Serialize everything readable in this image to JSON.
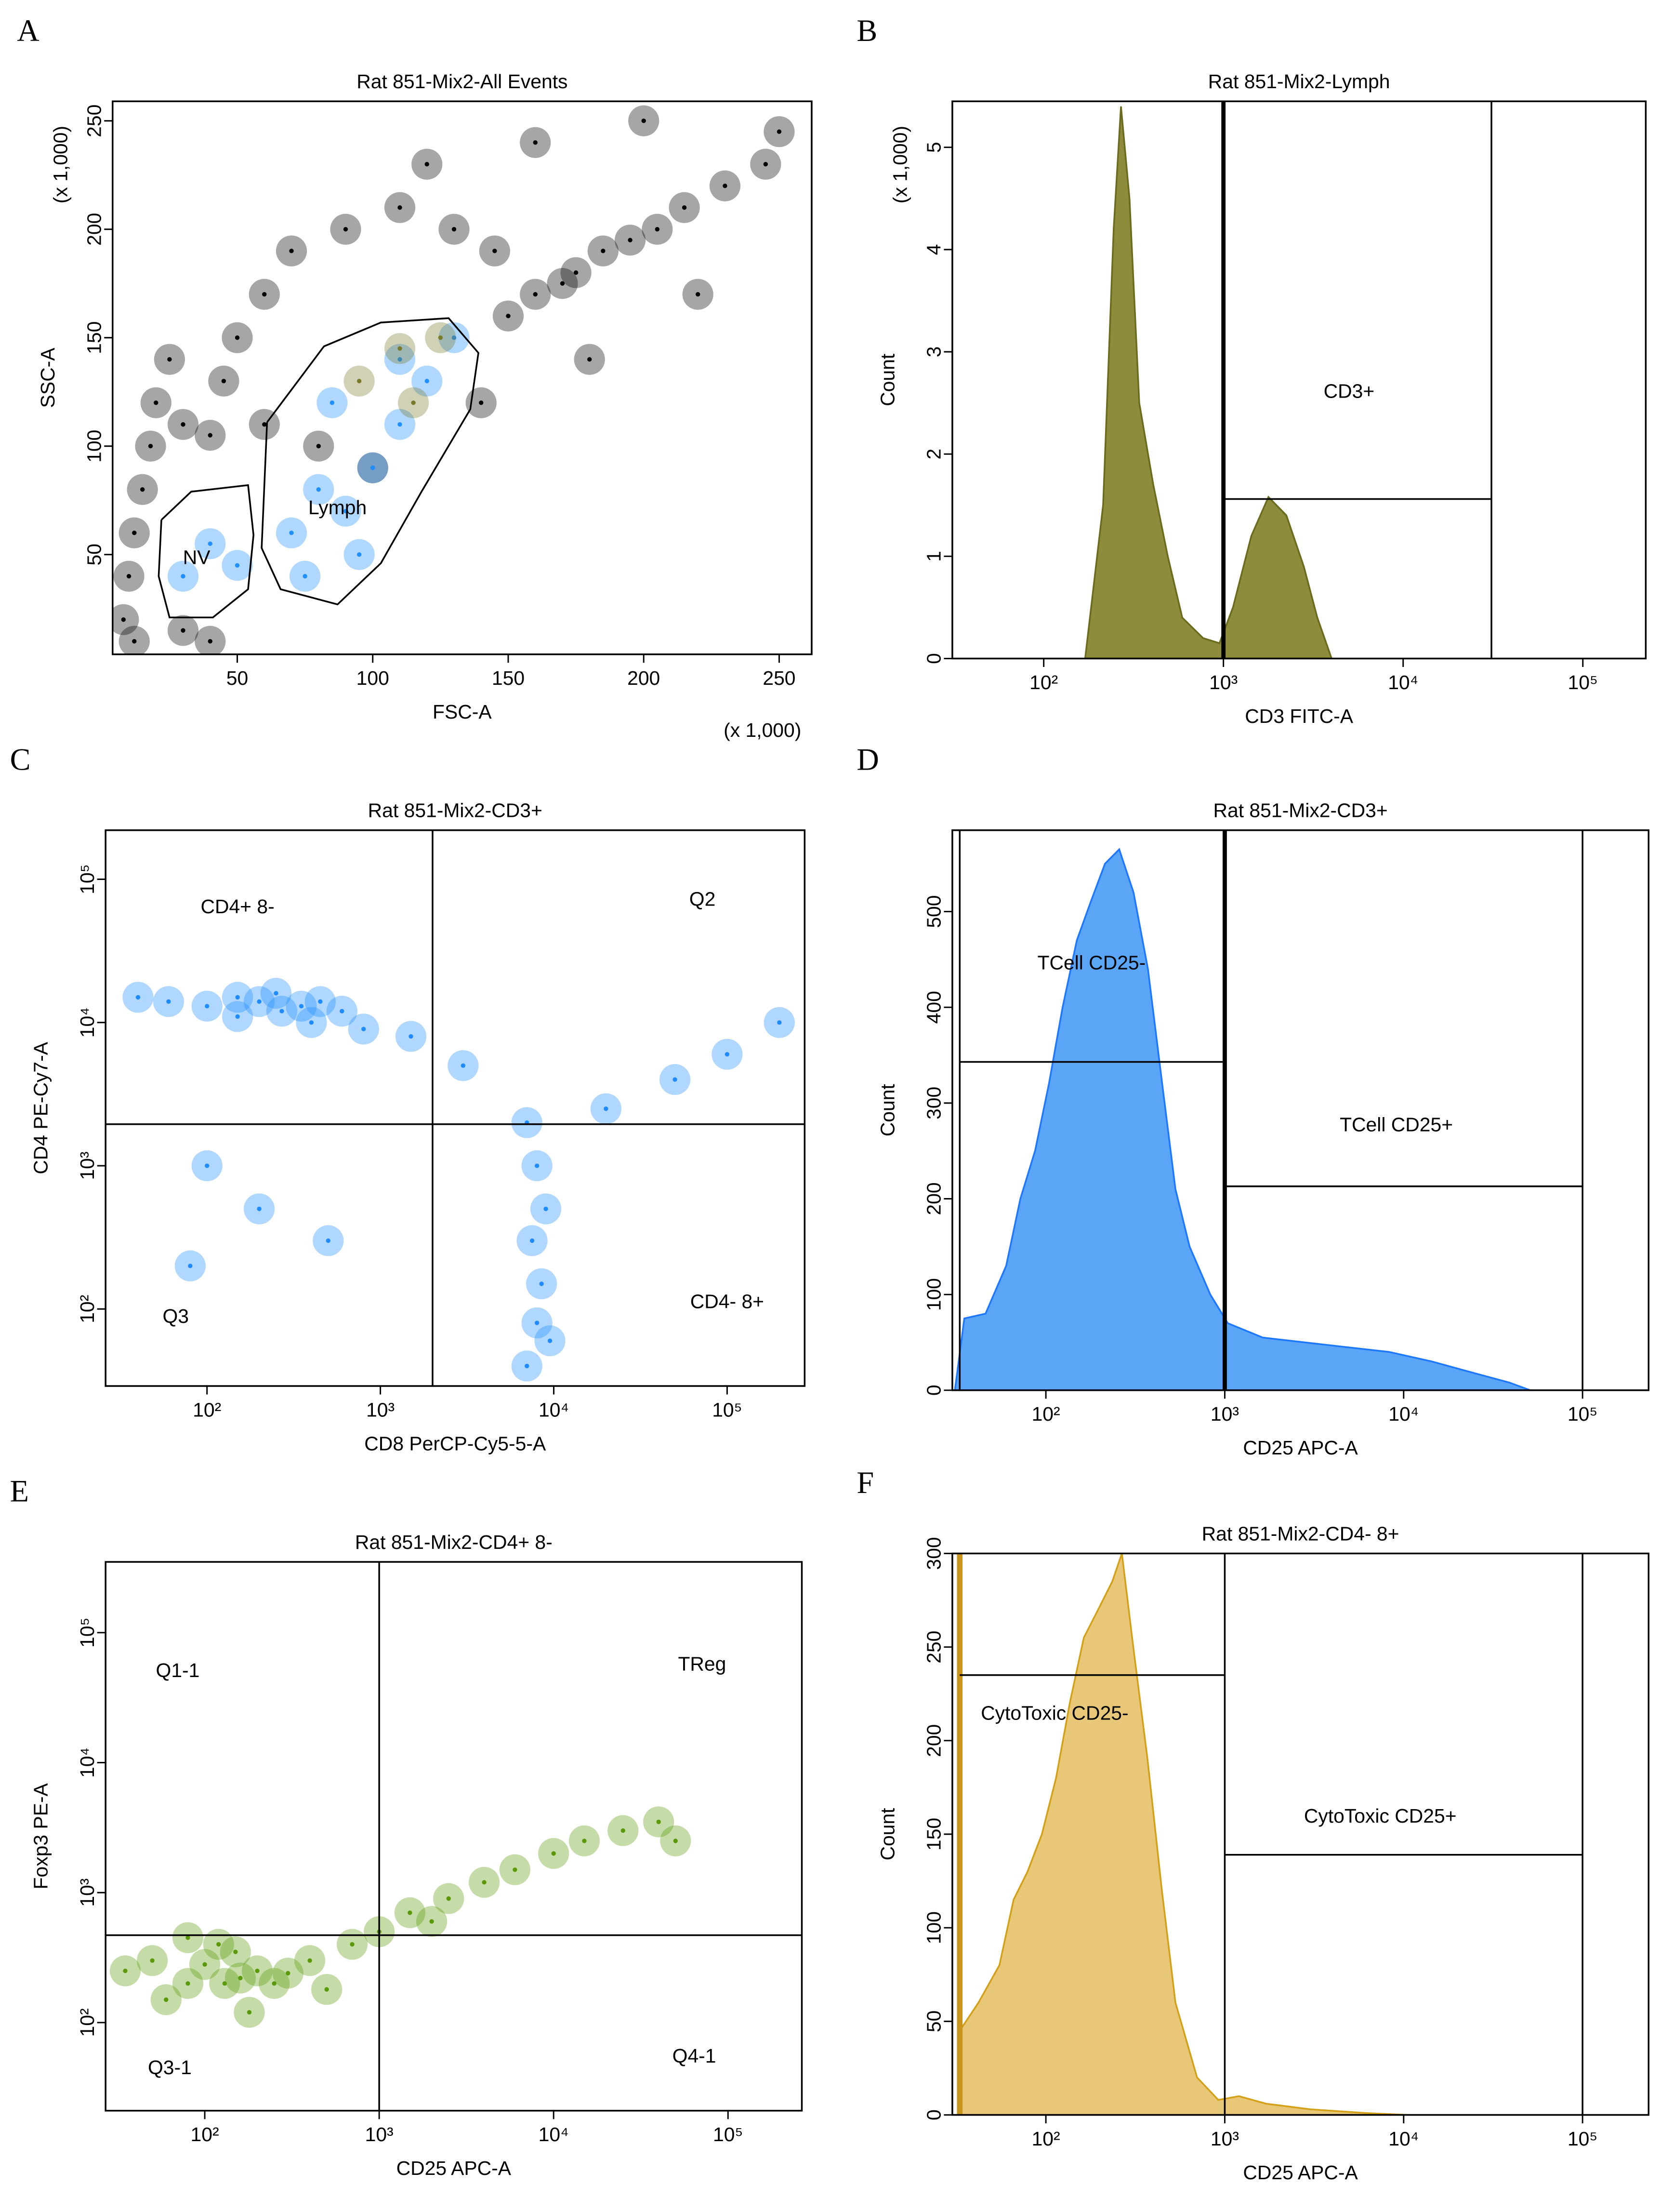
{
  "chart_data": [
    {
      "panel": "A",
      "type": "scatter",
      "title": "Rat 851-Mix2-All Events",
      "xlabel": "FSC-A",
      "ylabel": "SSC-A",
      "xlabel_unit": "(x 1,000)",
      "ylabel_unit": "(x 1,000)",
      "xlim": [
        4,
        262
      ],
      "ylim": [
        4,
        259
      ],
      "xticks": [
        50,
        100,
        150,
        200,
        250
      ],
      "yticks": [
        50,
        100,
        150,
        200,
        250
      ],
      "series": [
        {
          "color": "#000000",
          "x": [
            8,
            10,
            12,
            15,
            18,
            12,
            20,
            25,
            30,
            40,
            45,
            50,
            60,
            70,
            90,
            110,
            130,
            145,
            150,
            160,
            170,
            175,
            185,
            195,
            205,
            215,
            230,
            245,
            200,
            160,
            120,
            100,
            80,
            60,
            40,
            180,
            220,
            250,
            30,
            140
          ],
          "values": [
            20,
            40,
            60,
            80,
            100,
            10,
            120,
            140,
            15,
            105,
            130,
            150,
            170,
            190,
            200,
            210,
            200,
            190,
            160,
            170,
            175,
            180,
            190,
            195,
            200,
            210,
            220,
            230,
            250,
            240,
            230,
            90,
            100,
            110,
            10,
            140,
            170,
            245,
            110,
            120
          ]
        },
        {
          "color": "#1e90ff",
          "x": [
            30,
            40,
            50,
            70,
            80,
            90,
            100,
            110,
            120,
            75,
            95,
            110,
            130,
            85
          ],
          "values": [
            40,
            55,
            45,
            60,
            80,
            70,
            90,
            110,
            130,
            40,
            50,
            140,
            150,
            120
          ]
        },
        {
          "color": "#7a7a2a",
          "x": [
            95,
            110,
            125,
            115
          ],
          "values": [
            130,
            145,
            150,
            120
          ]
        }
      ],
      "gates": [
        {
          "x": [
            61,
            82,
            103,
            128,
            139,
            136,
            118,
            103,
            87,
            66,
            59,
            61
          ],
          "y": [
            111,
            146,
            157,
            159,
            143,
            117,
            79,
            46,
            27,
            34,
            53,
            111
          ]
        },
        {
          "x": [
            22,
            33,
            54,
            56,
            54,
            41,
            25,
            21,
            22
          ],
          "y": [
            66,
            79,
            82,
            59,
            34,
            21,
            21,
            40,
            66
          ]
        }
      ],
      "gate_labels": [
        {
          "text": "Lymph",
          "x": 87,
          "y": 71
        },
        {
          "text": "NV",
          "x": 35,
          "y": 48
        }
      ]
    },
    {
      "panel": "B",
      "type": "area",
      "title": "Rat 851-Mix2-Lymph",
      "xlabel": "CD3 FITC-A",
      "ylabel": "Count",
      "ylabel_unit": "(x 1,000)",
      "xscale": "log",
      "xlim": [
        31,
        224000
      ],
      "ylim": [
        0,
        5.45
      ],
      "xticks": [
        {
          "value": 100,
          "label": "10²"
        },
        {
          "value": 1000,
          "label": "10³"
        },
        {
          "value": 10000,
          "label": "10⁴"
        },
        {
          "value": 100000,
          "label": "10⁵"
        }
      ],
      "yticks": [
        0,
        1,
        2,
        3,
        4,
        5
      ],
      "color": "#6b6b1e",
      "fill": "#8c8c3c",
      "x": [
        170,
        214,
        245,
        269,
        300,
        340,
        407,
        490,
        590,
        770,
        950,
        1130,
        1430,
        1780,
        2240,
        2800,
        3330,
        4000
      ],
      "values": [
        0,
        1.5,
        4.2,
        5.4,
        4.5,
        2.5,
        1.7,
        1.0,
        0.4,
        0.2,
        0.15,
        0.5,
        1.2,
        1.58,
        1.4,
        0.9,
        0.4,
        0
      ],
      "gates": [
        {
          "x": [
            1000,
            1000
          ],
          "y": [
            0,
            5.45
          ],
          "width": 3
        },
        {
          "x": [
            31000,
            31000
          ],
          "y": [
            0,
            5.45
          ]
        },
        {
          "x": [
            1000,
            31000
          ],
          "y": [
            1.56,
            1.56
          ]
        }
      ],
      "gate_labels": [
        {
          "text": "CD3+",
          "x": 5000,
          "y": 2.6
        }
      ]
    },
    {
      "panel": "C",
      "type": "scatter",
      "title": "Rat 851-Mix2-CD3+",
      "xlabel": "CD8 PerCP-Cy5-5-A",
      "ylabel": "CD4 PE-Cy7-A",
      "xscale": "log",
      "yscale": "log",
      "xlim": [
        26,
        280000
      ],
      "ylim": [
        29,
        220000
      ],
      "xticks": [
        {
          "value": 100,
          "label": "10²"
        },
        {
          "value": 1000,
          "label": "10³"
        },
        {
          "value": 10000,
          "label": "10⁴"
        },
        {
          "value": 100000,
          "label": "10⁵"
        }
      ],
      "yticks": [
        {
          "value": 100,
          "label": "10²"
        },
        {
          "value": 1000,
          "label": "10³"
        },
        {
          "value": 10000,
          "label": "10⁴"
        },
        {
          "value": 100000,
          "label": "10⁵"
        }
      ],
      "series": [
        {
          "color": "#1e8cff",
          "x": [
            40,
            60,
            100,
            150,
            200,
            270,
            350,
            450,
            600,
            800,
            150,
            250,
            400,
            7000,
            8000,
            9000,
            7500,
            8500,
            8000,
            7000,
            9500,
            20000,
            50000,
            100000,
            200000,
            3000,
            1500,
            80,
            200,
            500,
            100
          ],
          "values": [
            15000,
            14000,
            13000,
            15000,
            14000,
            12000,
            13000,
            14000,
            12000,
            9000,
            11000,
            16000,
            10000,
            2000,
            1000,
            500,
            300,
            150,
            80,
            40,
            60,
            2500,
            4000,
            6000,
            10000,
            5000,
            8000,
            200,
            500,
            300,
            1000
          ]
        }
      ],
      "gates": [
        {
          "x": [
            2000,
            2000
          ],
          "y": [
            29,
            220000
          ]
        },
        {
          "x": [
            26,
            280000
          ],
          "y": [
            1950,
            1950
          ]
        }
      ],
      "gate_labels": [
        {
          "text": "CD4+ 8-",
          "x": 150,
          "y": 63000
        },
        {
          "text": "Q2",
          "x": 72000,
          "y": 71000
        },
        {
          "text": "Q3",
          "x": 66,
          "y": 87
        },
        {
          "text": "CD4- 8+",
          "x": 100000,
          "y": 110
        }
      ]
    },
    {
      "panel": "D",
      "type": "area",
      "title": "Rat 851-Mix2-CD3+",
      "xlabel": "CD25 APC-A",
      "ylabel": "Count",
      "xscale": "log",
      "xlim": [
        30,
        234000
      ],
      "ylim": [
        0,
        585
      ],
      "xticks": [
        {
          "value": 100,
          "label": "10²"
        },
        {
          "value": 1000,
          "label": "10³"
        },
        {
          "value": 10000,
          "label": "10⁴"
        },
        {
          "value": 100000,
          "label": "10⁵"
        }
      ],
      "yticks": [
        0,
        100,
        200,
        300,
        400,
        500
      ],
      "color": "#1e78ff",
      "fill": "#5aa5f5",
      "x": [
        31,
        35,
        46,
        60,
        72,
        87,
        104,
        124,
        149,
        178,
        214,
        257,
        309,
        372,
        447,
        530,
        636,
        830,
        1040,
        1630,
        2800,
        4800,
        8300,
        14400,
        24700,
        39000,
        51000
      ],
      "values": [
        0,
        75,
        80,
        130,
        200,
        250,
        320,
        400,
        470,
        510,
        550,
        565,
        520,
        440,
        320,
        210,
        150,
        100,
        70,
        55,
        50,
        45,
        40,
        30,
        18,
        8,
        0
      ],
      "gates": [
        {
          "x": [
            33,
            33
          ],
          "y": [
            0,
            585
          ]
        },
        {
          "x": [
            1000,
            1000
          ],
          "y": [
            0,
            585
          ],
          "width": 3
        },
        {
          "x": [
            100000,
            100000
          ],
          "y": [
            0,
            585
          ]
        },
        {
          "x": [
            33,
            1000
          ],
          "y": [
            343,
            343
          ]
        },
        {
          "x": [
            1000,
            100000
          ],
          "y": [
            213,
            213
          ]
        }
      ],
      "gate_labels": [
        {
          "text": "TCell CD25-",
          "x": 180,
          "y": 445
        },
        {
          "text": "TCell CD25+",
          "x": 9100,
          "y": 276
        }
      ]
    },
    {
      "panel": "E",
      "type": "scatter",
      "title": "Rat 851-Mix2-CD4+ 8-",
      "xlabel": "CD25 APC-A",
      "ylabel": "Foxp3 PE-A",
      "xscale": "log",
      "yscale": "log",
      "xlim": [
        27,
        265000
      ],
      "ylim": [
        21,
        350000
      ],
      "xticks": [
        {
          "value": 100,
          "label": "10²"
        },
        {
          "value": 1000,
          "label": "10³"
        },
        {
          "value": 10000,
          "label": "10⁴"
        },
        {
          "value": 100000,
          "label": "10⁵"
        }
      ],
      "yticks": [
        {
          "value": 100,
          "label": "10²"
        },
        {
          "value": 1000,
          "label": "10³"
        },
        {
          "value": 10000,
          "label": "10⁴"
        },
        {
          "value": 100000,
          "label": "10⁵"
        }
      ],
      "series": [
        {
          "color": "#5a9a0a",
          "x": [
            35,
            50,
            80,
            100,
            130,
            160,
            200,
            250,
            300,
            400,
            60,
            120,
            180,
            700,
            1000,
            1500,
            2500,
            4000,
            6000,
            10000,
            15000,
            25000,
            40000,
            50000,
            80,
            150,
            500,
            2000
          ],
          "values": [
            250,
            300,
            200,
            280,
            200,
            220,
            250,
            200,
            240,
            300,
            150,
            400,
            120,
            400,
            500,
            700,
            900,
            1200,
            1500,
            2000,
            2500,
            3000,
            3500,
            2500,
            450,
            350,
            180,
            600
          ]
        }
      ],
      "gates": [
        {
          "x": [
            1000,
            1000
          ],
          "y": [
            21,
            350000
          ]
        },
        {
          "x": [
            27,
            265000
          ],
          "y": [
            470,
            470
          ]
        }
      ],
      "gate_labels": [
        {
          "text": "Q1-1",
          "x": 70,
          "y": 50000
        },
        {
          "text": "TReg",
          "x": 71000,
          "y": 56000
        },
        {
          "text": "Q3-1",
          "x": 63,
          "y": 44
        },
        {
          "text": "Q4-1",
          "x": 64000,
          "y": 54
        }
      ]
    },
    {
      "panel": "F",
      "type": "area",
      "title": "Rat 851-Mix2-CD4- 8+",
      "xlabel": "CD25 APC-A",
      "ylabel": "Count",
      "xscale": "log",
      "xlim": [
        30,
        234000
      ],
      "ylim": [
        0,
        300
      ],
      "xticks": [
        {
          "value": 100,
          "label": "10²"
        },
        {
          "value": 1000,
          "label": "10³"
        },
        {
          "value": 10000,
          "label": "10⁴"
        },
        {
          "value": 100000,
          "label": "10⁵"
        }
      ],
      "yticks": [
        0,
        50,
        100,
        150,
        200,
        250,
        300
      ],
      "color": "#d4a017",
      "fill": "#e8c878",
      "x": [
        33,
        42,
        55,
        66,
        79,
        95,
        114,
        136,
        163,
        196,
        235,
        266,
        308,
        370,
        445,
        530,
        700,
        920,
        1200,
        1700,
        3000,
        6100,
        10500
      ],
      "values": [
        45,
        60,
        80,
        115,
        130,
        150,
        180,
        220,
        255,
        270,
        285,
        300,
        250,
        190,
        120,
        60,
        20,
        8,
        10,
        6,
        3,
        1,
        0
      ],
      "gates": [
        {
          "x": [
            33,
            33
          ],
          "y": [
            0,
            300
          ],
          "width": 4,
          "color": "#c8961e"
        },
        {
          "x": [
            1000,
            1000
          ],
          "y": [
            0,
            300
          ]
        },
        {
          "x": [
            100000,
            100000
          ],
          "y": [
            0,
            300
          ]
        },
        {
          "x": [
            33,
            1000
          ],
          "y": [
            235,
            235
          ]
        },
        {
          "x": [
            1000,
            100000
          ],
          "y": [
            139,
            139
          ]
        }
      ],
      "gate_labels": [
        {
          "text": "CytoToxic CD25-",
          "x": 112,
          "y": 214
        },
        {
          "text": "CytoToxic CD25+",
          "x": 7400,
          "y": 159
        }
      ]
    }
  ]
}
